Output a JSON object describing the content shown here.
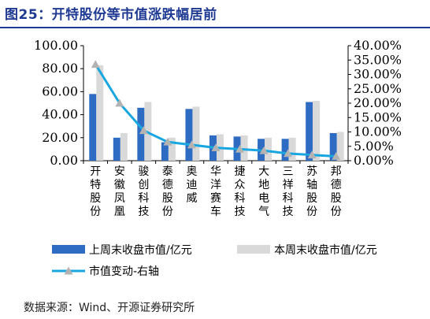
{
  "title": "图25：开特股份等市值涨跌幅居前",
  "source": "数据来源：Wind、开源证券研究所",
  "colors": {
    "prev_bar": "#2e6bc2",
    "curr_bar": "#d9d9d9",
    "line": "#1aa7e0",
    "marker": "#b3b3b3",
    "title": "#1f3a93"
  },
  "chart_data": {
    "type": "bar",
    "categories": [
      "开特股份",
      "安徽凤凰",
      "骏创科技",
      "泰德股份",
      "奥迪威",
      "华洋赛车",
      "捷众科技",
      "大地电气",
      "三祥科技",
      "苏轴股份",
      "邦德股份"
    ],
    "series": [
      {
        "name": "上周末收盘市值/亿元",
        "axis": "left",
        "kind": "bar",
        "values": [
          58,
          20,
          46,
          16,
          45,
          22,
          21,
          19,
          19,
          51,
          24
        ]
      },
      {
        "name": "本周末收盘市值/亿元",
        "axis": "left",
        "kind": "bar",
        "values": [
          83,
          24,
          51,
          20,
          47,
          23,
          22,
          20,
          20,
          52,
          25
        ]
      },
      {
        "name": "市值变动-右轴",
        "axis": "right",
        "kind": "line",
        "values": [
          33.5,
          20.0,
          10.5,
          6.5,
          5.5,
          4.5,
          4.0,
          3.5,
          2.5,
          2.0,
          1.5
        ]
      }
    ],
    "y_left": {
      "min": 0,
      "max": 100,
      "ticks": [
        "0.00",
        "20.00",
        "40.00",
        "60.00",
        "80.00",
        "100.00"
      ]
    },
    "y_right": {
      "min": 0,
      "max": 40,
      "ticks": [
        "0.00%",
        "5.00%",
        "10.00%",
        "15.00%",
        "20.00%",
        "25.00%",
        "30.00%",
        "35.00%",
        "40.00%"
      ]
    },
    "grid": false,
    "legend_position": "bottom"
  }
}
